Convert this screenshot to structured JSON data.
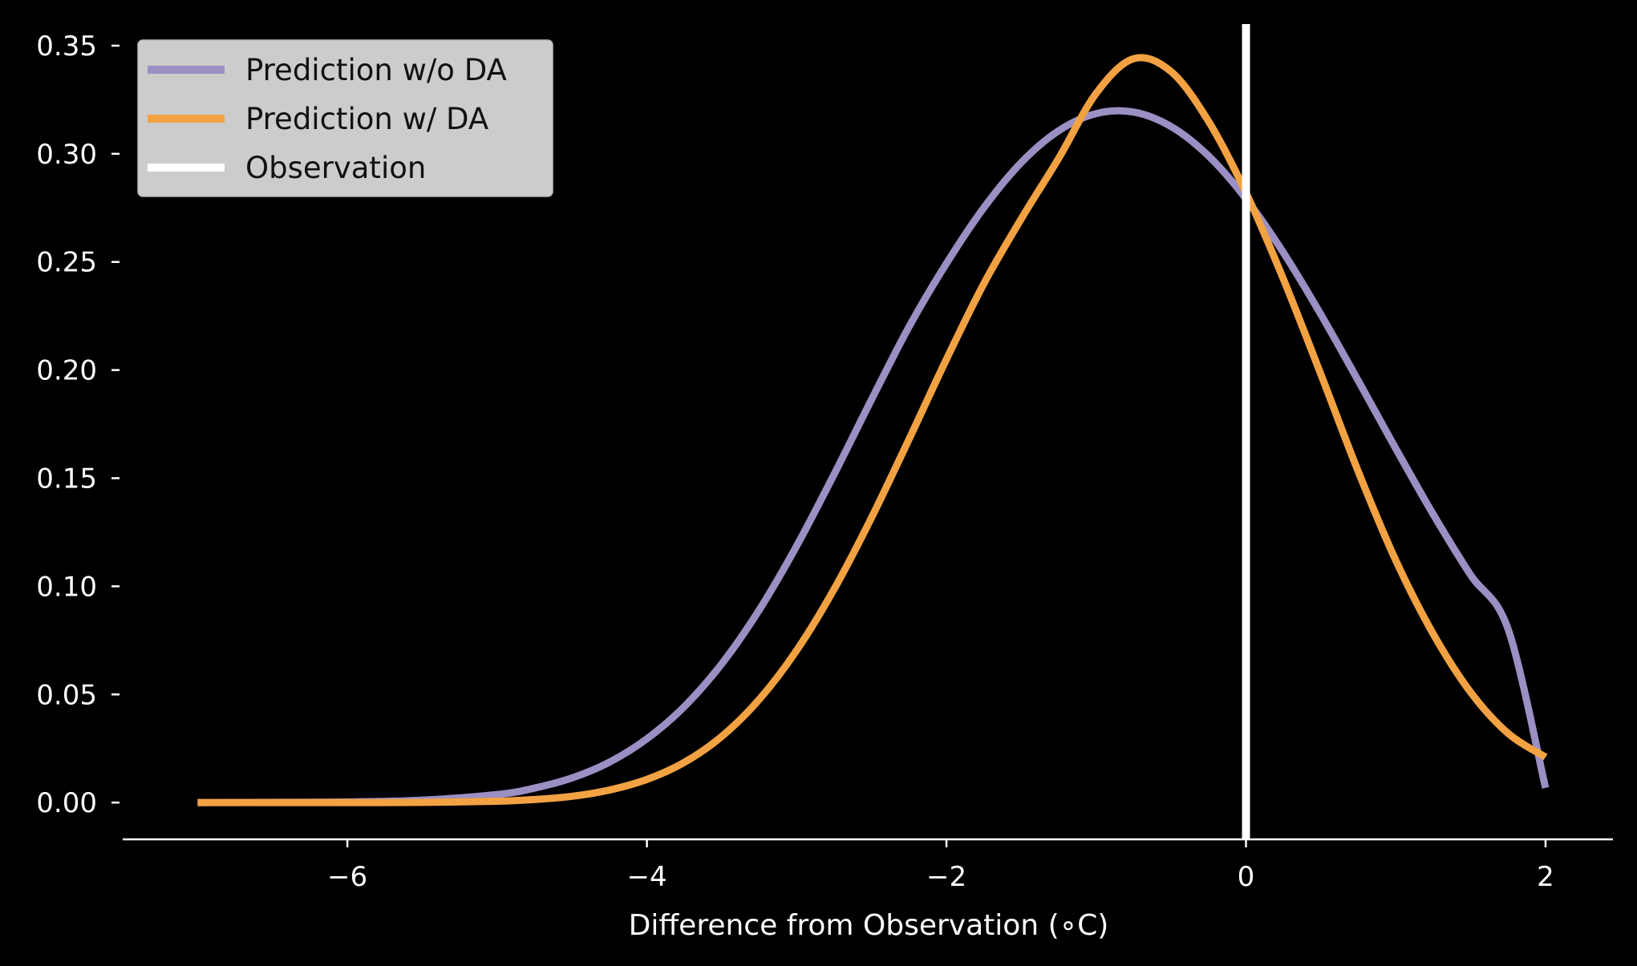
{
  "chart_data": {
    "type": "line",
    "title": "",
    "xlabel": "Difference from Observation (∘C)",
    "ylabel": "",
    "xlim": [
      -7.5,
      2.45
    ],
    "ylim": [
      -0.017,
      0.36
    ],
    "x_ticks": [
      -6,
      -4,
      -2,
      0,
      2
    ],
    "x_tick_labels": [
      "−6",
      "−4",
      "−2",
      "0",
      "2"
    ],
    "y_ticks": [
      0.0,
      0.05,
      0.1,
      0.15,
      0.2,
      0.25,
      0.3,
      0.35
    ],
    "y_tick_labels": [
      "0.00",
      "0.05",
      "0.10",
      "0.15",
      "0.20",
      "0.25",
      "0.30",
      "0.35"
    ],
    "grid": false,
    "legend_position": "top-left",
    "series": [
      {
        "name": "Prediction w/o DA",
        "color": "#9b8fc4",
        "x": [
          -7.0,
          -6.5,
          -6.0,
          -5.5,
          -5.0,
          -4.75,
          -4.5,
          -4.25,
          -4.0,
          -3.75,
          -3.5,
          -3.25,
          -3.0,
          -2.75,
          -2.5,
          -2.25,
          -2.0,
          -1.75,
          -1.5,
          -1.25,
          -1.0,
          -0.75,
          -0.5,
          -0.25,
          0.0,
          0.25,
          0.5,
          0.75,
          1.0,
          1.25,
          1.5,
          1.75,
          2.0
        ],
        "values": [
          0.0,
          0.0001,
          0.0003,
          0.0011,
          0.0037,
          0.0067,
          0.0114,
          0.0187,
          0.0295,
          0.0444,
          0.0642,
          0.0891,
          0.1187,
          0.1518,
          0.1864,
          0.22,
          0.2493,
          0.2751,
          0.296,
          0.3107,
          0.3186,
          0.3193,
          0.3126,
          0.299,
          0.2792,
          0.2543,
          0.2257,
          0.195,
          0.1637,
          0.1333,
          0.1052,
          0.0802,
          0.0068
        ]
      },
      {
        "name": "Prediction w/ DA",
        "color": "#f2a242",
        "x": [
          -7.0,
          -6.5,
          -6.0,
          -5.5,
          -5.0,
          -4.75,
          -4.5,
          -4.25,
          -4.0,
          -3.75,
          -3.5,
          -3.25,
          -3.0,
          -2.75,
          -2.5,
          -2.25,
          -2.0,
          -1.75,
          -1.5,
          -1.25,
          -1.0,
          -0.75,
          -0.5,
          -0.25,
          0.0,
          0.25,
          0.5,
          0.75,
          1.0,
          1.25,
          1.5,
          1.75,
          2.0
        ],
        "values": [
          0.0,
          0.0,
          0.0,
          0.0001,
          0.0006,
          0.0014,
          0.0029,
          0.0058,
          0.0107,
          0.0186,
          0.0306,
          0.0477,
          0.0704,
          0.0987,
          0.1318,
          0.168,
          0.205,
          0.24,
          0.27,
          0.298,
          0.328,
          0.344,
          0.338,
          0.315,
          0.282,
          0.242,
          0.198,
          0.153,
          0.112,
          0.078,
          0.051,
          0.032,
          0.021
        ]
      },
      {
        "name": "Observation",
        "color": "#ffffff",
        "type": "vline",
        "x_value": 0
      }
    ]
  }
}
